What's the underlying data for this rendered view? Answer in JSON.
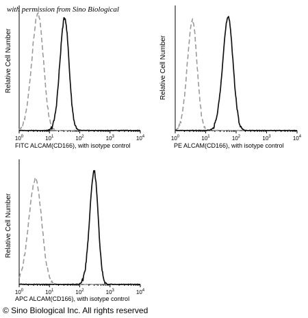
{
  "watermark": "with permission from Sino Biological",
  "copyright": "© Sino Biological Inc. All rights reserved",
  "colors": {
    "isotype": "#9a9a9a",
    "antibody": "#111111"
  },
  "chart_data": [
    {
      "type": "line",
      "id": "fitc",
      "ylabel": "Relative Cell Number",
      "xlabel": "FITC  ALCAM(CD166),  with isotype control",
      "xscale": "log",
      "xlim": [
        1,
        10000
      ],
      "xticks": [
        {
          "base": "10",
          "exp": "0"
        },
        {
          "base": "10",
          "exp": "1"
        },
        {
          "base": "10",
          "exp": "2"
        },
        {
          "base": "10",
          "exp": "3"
        },
        {
          "base": "10",
          "exp": "4"
        }
      ],
      "series": [
        {
          "role": "isotype",
          "style": "dashed",
          "peak": 4.2,
          "width": 0.18,
          "height": 0.93
        },
        {
          "role": "antibody",
          "style": "solid",
          "peak": 32,
          "width": 0.14,
          "height": 0.9
        }
      ]
    },
    {
      "type": "line",
      "id": "pe",
      "ylabel": "Relative Cell Number",
      "xlabel": "PE  ALCAM(CD166),  with isotype control",
      "xscale": "log",
      "xlim": [
        1,
        10000
      ],
      "xticks": [
        {
          "base": "10",
          "exp": "0"
        },
        {
          "base": "10",
          "exp": "1"
        },
        {
          "base": "10",
          "exp": "2"
        },
        {
          "base": "10",
          "exp": "3"
        },
        {
          "base": "10",
          "exp": "4"
        }
      ],
      "series": [
        {
          "role": "isotype",
          "style": "dashed",
          "peak": 3.7,
          "width": 0.15,
          "height": 0.88
        },
        {
          "role": "antibody",
          "style": "solid",
          "peak": 55,
          "width": 0.16,
          "height": 0.9
        }
      ]
    },
    {
      "type": "line",
      "id": "apc",
      "ylabel": "Relative Cell Number",
      "xlabel": "APC ALCAM(CD166), with isotype control",
      "xscale": "log",
      "xlim": [
        1,
        10000
      ],
      "xticks": [
        {
          "base": "10",
          "exp": "0"
        },
        {
          "base": "10",
          "exp": "1"
        },
        {
          "base": "10",
          "exp": "2"
        },
        {
          "base": "10",
          "exp": "3"
        },
        {
          "base": "10",
          "exp": "4"
        }
      ],
      "series": [
        {
          "role": "isotype",
          "style": "dashed",
          "peak": 3.5,
          "width": 0.2,
          "height": 0.84
        },
        {
          "role": "antibody",
          "style": "solid",
          "peak": 300,
          "width": 0.13,
          "height": 0.9
        }
      ]
    }
  ]
}
